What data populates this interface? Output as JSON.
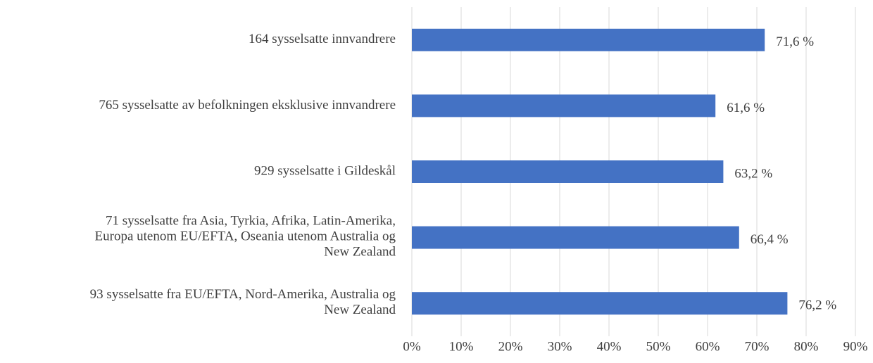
{
  "chart_data": {
    "type": "barh",
    "categories": [
      "164 sysselsatte innvandrere",
      "765 sysselsatte av befolkningen eksklusive innvandrere",
      "929 sysselsatte i Gildeskål ",
      "71 sysselsatte fra Asia, Tyrkia, Afrika, Latin-Amerika,\nEuropa utenom EU/EFTA, Oseania utenom Australia og\nNew Zealand",
      "93 sysselsatte fra EU/EFTA, Nord-Amerika, Australia og\nNew Zealand"
    ],
    "values": [
      71.6,
      61.6,
      63.2,
      66.4,
      76.2
    ],
    "value_labels": [
      "71,6 %",
      "61,6 %",
      "63,2 %",
      "66,4 %",
      "76,2 %"
    ],
    "color": "#4472c4",
    "xlim": [
      0,
      90
    ],
    "xticks": [
      {
        "value": 0,
        "label": "0%"
      },
      {
        "value": 10,
        "label": "10%"
      },
      {
        "value": 20,
        "label": "20%"
      },
      {
        "value": 30,
        "label": "30%"
      },
      {
        "value": 40,
        "label": "40%"
      },
      {
        "value": 50,
        "label": "50%"
      },
      {
        "value": 60,
        "label": "60%"
      },
      {
        "value": 70,
        "label": "70%"
      },
      {
        "value": 80,
        "label": "80%"
      },
      {
        "value": 90,
        "label": "90%"
      }
    ],
    "grid": true
  }
}
